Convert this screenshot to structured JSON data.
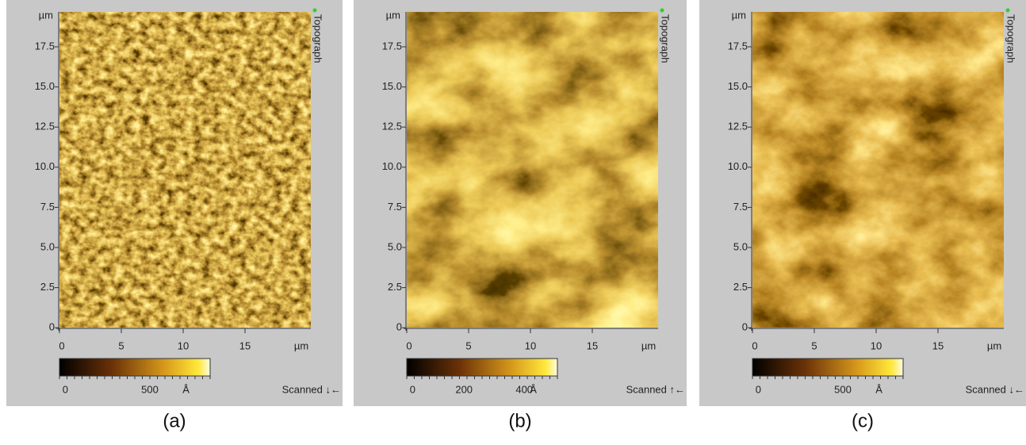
{
  "panels": [
    {
      "y_unit": "µm",
      "yticks": [
        "17.5",
        "15.0",
        "12.5",
        "10.0",
        "7.5",
        "5.0",
        "2.5",
        "0"
      ],
      "xticks": [
        "0",
        "5",
        "10",
        "15"
      ],
      "x_unit": "µm",
      "channel": "Topograph",
      "colorbar_ticks": [
        "0",
        "500"
      ],
      "colorbar_unit": "Å",
      "scan_direction": "Scanned ↓←",
      "caption": "(a)"
    },
    {
      "y_unit": "µm",
      "yticks": [
        "17.5",
        "15.0",
        "12.5",
        "10.0",
        "7.5",
        "5.0",
        "2.5",
        "0"
      ],
      "xticks": [
        "0",
        "5",
        "10",
        "15"
      ],
      "x_unit": "µm",
      "channel": "Topograph",
      "colorbar_ticks": [
        "0",
        "200",
        "400"
      ],
      "colorbar_unit": "Å",
      "scan_direction": "Scanned ↑←",
      "caption": "(b)"
    },
    {
      "y_unit": "µm",
      "yticks": [
        "17.5",
        "15.0",
        "12.5",
        "10.0",
        "7.5",
        "5.0",
        "2.5",
        "0"
      ],
      "xticks": [
        "0",
        "5",
        "10",
        "15"
      ],
      "x_unit": "µm",
      "channel": "Topograph",
      "colorbar_ticks": [
        "0",
        "500"
      ],
      "colorbar_unit": "Å",
      "scan_direction": "Scanned ↓←",
      "caption": "(c)"
    }
  ]
}
